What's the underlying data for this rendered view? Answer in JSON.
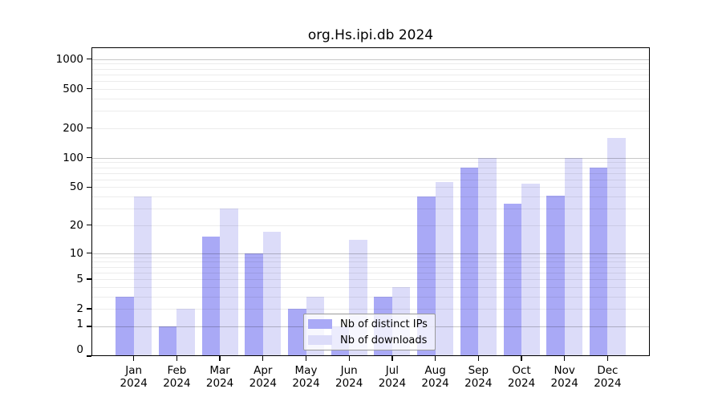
{
  "title": "org.Hs.ipi.db 2024",
  "colors": {
    "ips": "#a9a9f6",
    "downloads": "#dcdcf9",
    "grid_minor": "rgba(0,0,0,0.075)",
    "grid_major": "rgba(0,0,0,0.22)",
    "axis": "#000000",
    "legend_border": "#9a9a9a",
    "background": "#ffffff",
    "text": "#000000"
  },
  "legend": {
    "items": [
      {
        "label": "Nb of distinct IPs",
        "color_key": "ips"
      },
      {
        "label": "Nb of downloads",
        "color_key": "downloads"
      }
    ]
  },
  "chart_data": {
    "type": "bar",
    "title": "org.Hs.ipi.db 2024",
    "categories": [
      "Jan",
      "Feb",
      "Mar",
      "Apr",
      "May",
      "Jun",
      "Jul",
      "Aug",
      "Sep",
      "Oct",
      "Nov",
      "Dec"
    ],
    "year_label": "2024",
    "series": [
      {
        "name": "Nb of distinct IPs",
        "color_key": "ips",
        "values": [
          3,
          1,
          15,
          10,
          2,
          1,
          3,
          40,
          80,
          34,
          41,
          80
        ]
      },
      {
        "name": "Nb of downloads",
        "color_key": "downloads",
        "values": [
          40,
          2,
          30,
          17,
          3,
          14,
          4,
          56,
          100,
          54,
          100,
          158
        ]
      }
    ],
    "xlabel": "",
    "ylabel": "",
    "yscale": "log10(value+1)",
    "ylim": [
      0,
      1318
    ],
    "yticks": [
      0,
      1,
      2,
      5,
      10,
      20,
      50,
      100,
      200,
      500,
      1000
    ],
    "grid": {
      "minor": [
        2,
        3,
        4,
        5,
        6,
        7,
        8,
        9,
        20,
        30,
        40,
        50,
        60,
        70,
        80,
        90,
        200,
        300,
        400,
        500,
        600,
        700,
        800,
        900
      ],
      "major": [
        1,
        10,
        100,
        1000
      ],
      "on": true
    },
    "legend_position": "inside-bottom-center",
    "bar_layout": "grouped-pairs-touching"
  }
}
